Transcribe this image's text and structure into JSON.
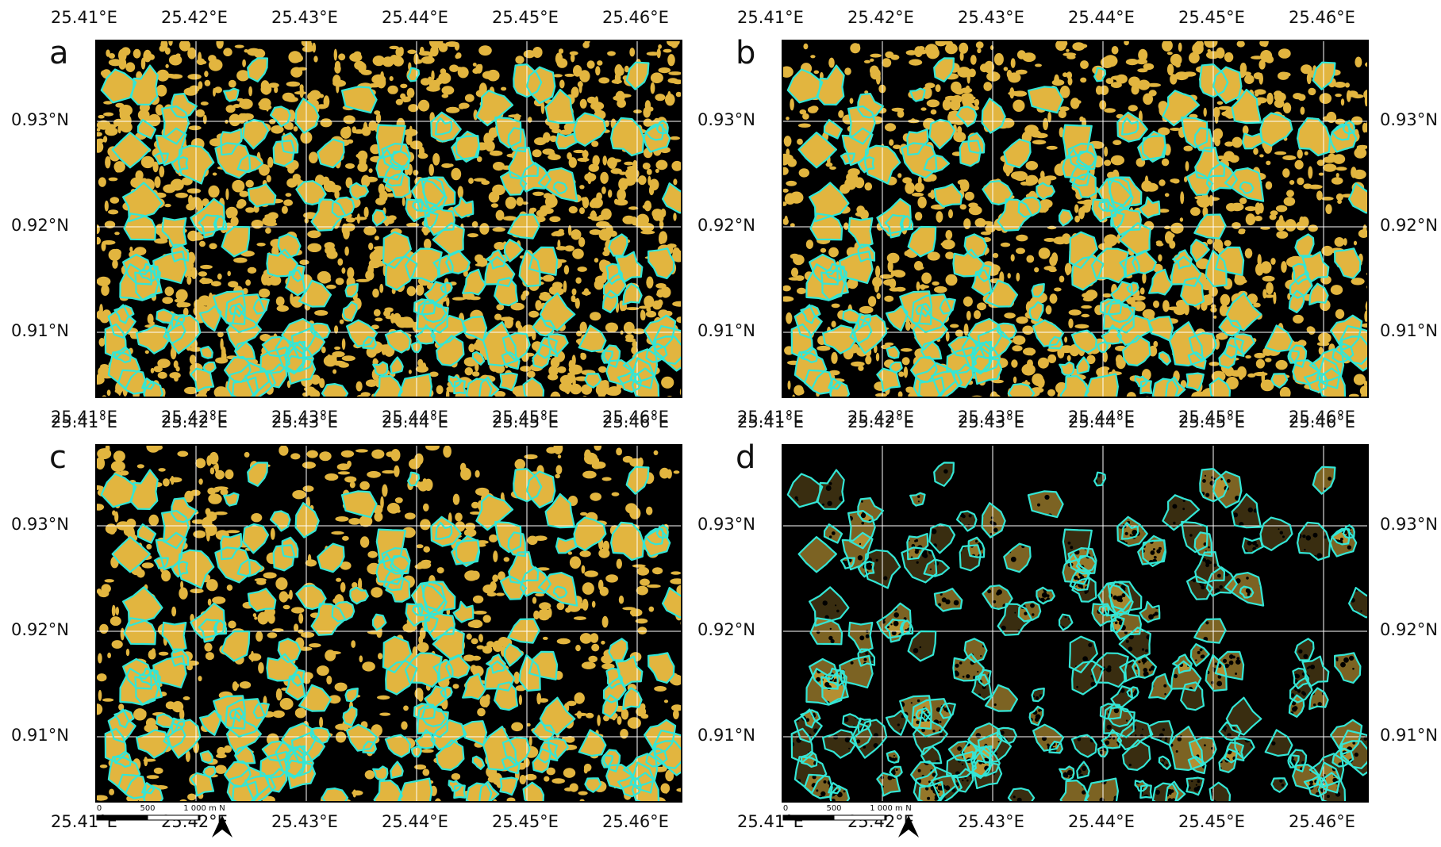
{
  "figure": {
    "lon_ticks": [
      "25.41°E",
      "25.42°E",
      "25.43°E",
      "25.44°E",
      "25.45°E",
      "25.46°E"
    ],
    "lat_ticks": [
      "0.93°N",
      "0.92°N",
      "0.91°N"
    ],
    "panels": [
      {
        "letter": "a",
        "density": 0.55
      },
      {
        "letter": "b",
        "density": 0.45
      },
      {
        "letter": "c",
        "density": 0.3
      },
      {
        "letter": "d",
        "density": 0.0
      }
    ],
    "scalebar": {
      "labels": [
        "0",
        "500",
        "1 000 m"
      ],
      "north_label": "N"
    },
    "colors": {
      "background": "#000000",
      "canopy": "#e2b53f",
      "outline": "#33e6d6",
      "grid": "#ffffff"
    }
  }
}
